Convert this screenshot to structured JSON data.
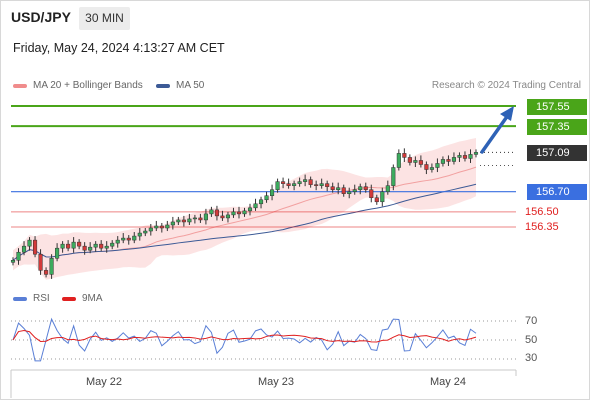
{
  "header": {
    "symbol": "USD/JPY",
    "timeframe": "30 MIN",
    "datetime": "Friday, May 24, 2024 4:13:27 AM CET"
  },
  "legend": {
    "ma20": {
      "label": "MA 20 + Bollinger Bands",
      "color": "#f08c8c"
    },
    "ma50": {
      "label": "MA 50",
      "color": "#3c5a96"
    },
    "credit": "Research © 2024 Trading Central"
  },
  "indicator_legend": {
    "rsi": {
      "label": "RSI",
      "color": "#5a7fd6"
    },
    "ma9": {
      "label": "9MA",
      "color": "#e02020"
    }
  },
  "levels": [
    {
      "value": "157.55",
      "kind": "resistance",
      "color": "#4aa519"
    },
    {
      "value": "157.35",
      "kind": "resistance",
      "color": "#4aa519"
    },
    {
      "value": "157.09",
      "kind": "last",
      "color": "#333333"
    },
    {
      "value": "156.70",
      "kind": "pivot",
      "color": "#3a6fe0"
    },
    {
      "value": "156.50",
      "kind": "support",
      "color": "#e02020"
    },
    {
      "value": "156.35",
      "kind": "support",
      "color": "#e02020"
    }
  ],
  "rsi_levels": [
    "70",
    "50",
    "30"
  ],
  "x_labels": [
    "May 22",
    "May 23",
    "May 24"
  ],
  "chart_data": {
    "type": "candlestick",
    "title": "USD/JPY",
    "timeframe": "30 MIN",
    "y_range": [
      155.95,
      157.7
    ],
    "close_series": [
      156.02,
      156.1,
      156.16,
      156.22,
      156.08,
      155.92,
      155.88,
      156.04,
      156.14,
      156.18,
      156.14,
      156.2,
      156.16,
      156.12,
      156.15,
      156.18,
      156.14,
      156.16,
      156.19,
      156.22,
      156.24,
      156.22,
      156.26,
      156.29,
      156.31,
      156.34,
      156.36,
      156.34,
      156.37,
      156.4,
      156.42,
      156.4,
      156.43,
      156.44,
      156.42,
      156.48,
      156.52,
      156.46,
      156.44,
      156.47,
      156.5,
      156.48,
      156.51,
      156.54,
      156.58,
      156.62,
      156.66,
      156.72,
      156.8,
      156.78,
      156.76,
      156.78,
      156.8,
      156.82,
      156.77,
      156.76,
      156.78,
      156.75,
      156.72,
      156.74,
      156.68,
      156.7,
      156.72,
      156.75,
      156.72,
      156.64,
      156.6,
      156.7,
      156.76,
      156.94,
      157.08,
      157.04,
      156.99,
      157.01,
      156.97,
      156.92,
      156.94,
      156.98,
      157.02,
      157.0,
      157.04,
      157.06,
      157.03,
      157.07,
      157.09
    ],
    "series": [
      {
        "name": "MA 20 + Bollinger Bands"
      },
      {
        "name": "MA 50"
      }
    ],
    "annotation": "projected move up toward 157.55",
    "rsi_panel": {
      "levels": [
        70,
        50,
        30
      ],
      "series": [
        "RSI",
        "9MA"
      ]
    }
  }
}
